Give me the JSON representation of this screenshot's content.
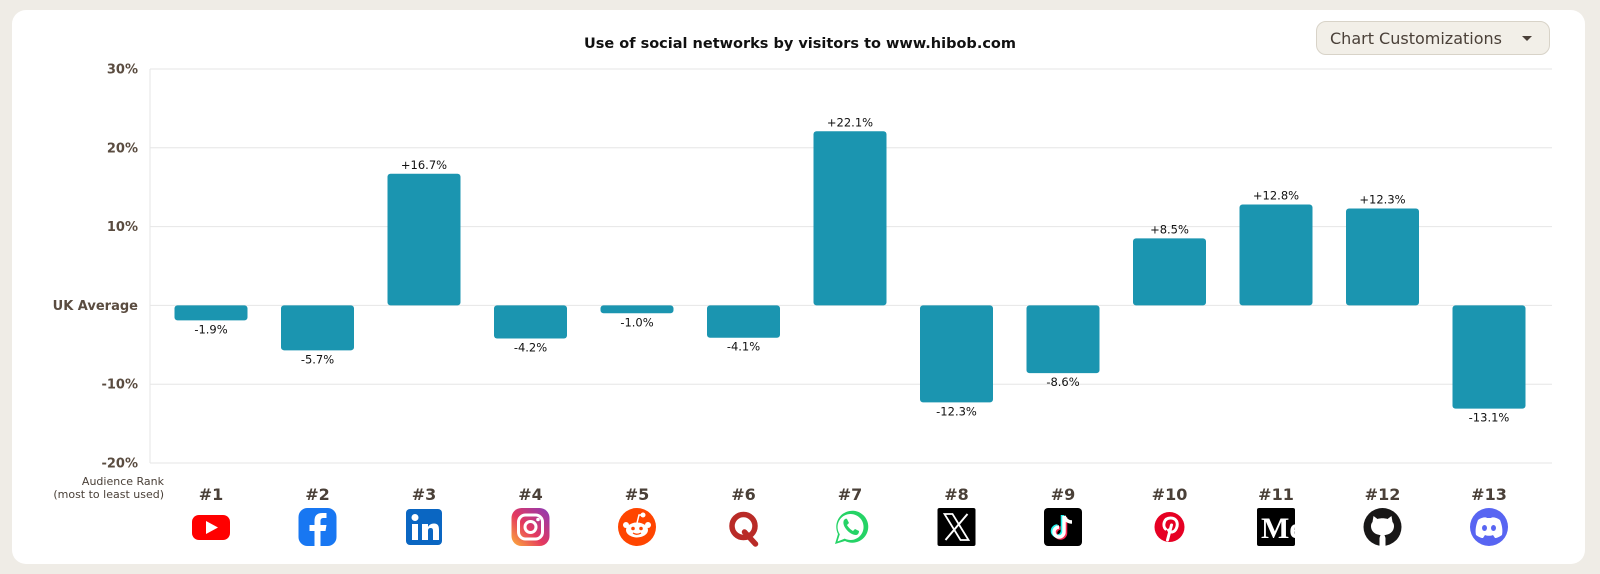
{
  "title": "Use of social networks by visitors to www.hibob.com",
  "customize_button": {
    "label": "Chart Customizations",
    "icon": "chevron-down-icon"
  },
  "rank_caption": {
    "line1": "Audience Rank",
    "line2": "(most to least used)"
  },
  "chart_data": {
    "type": "bar",
    "title": "Use of social networks by visitors to www.hibob.com",
    "xlabel": "",
    "ylabel": "",
    "baseline_label": "UK Average",
    "categories": [
      "#1",
      "#2",
      "#3",
      "#4",
      "#5",
      "#6",
      "#7",
      "#8",
      "#9",
      "#10",
      "#11",
      "#12",
      "#13"
    ],
    "values": [
      -1.9,
      -5.7,
      16.7,
      -4.2,
      -1.0,
      -4.1,
      22.1,
      -12.3,
      -8.6,
      8.5,
      12.8,
      12.3,
      -13.1
    ],
    "value_labels": [
      "-1.9%",
      "-5.7%",
      "+16.7%",
      "-4.2%",
      "-1.0%",
      "-4.1%",
      "+22.1%",
      "-12.3%",
      "-8.6%",
      "+8.5%",
      "+12.8%",
      "+12.3%",
      "-13.1%"
    ],
    "icons": [
      "youtube-icon",
      "facebook-icon",
      "linkedin-icon",
      "instagram-icon",
      "reddit-icon",
      "quora-icon",
      "whatsapp-icon",
      "x-icon",
      "tiktok-icon",
      "pinterest-icon",
      "medium-icon",
      "github-icon",
      "discord-icon"
    ],
    "yticks": [
      {
        "value": 30,
        "label": "30%"
      },
      {
        "value": 20,
        "label": "20%"
      },
      {
        "value": 10,
        "label": "10%"
      },
      {
        "value": 0,
        "label": "UK Average"
      },
      {
        "value": -10,
        "label": "-10%"
      },
      {
        "value": -20,
        "label": "-20%"
      }
    ],
    "ylim": [
      -20,
      30
    ],
    "grid": true,
    "bar_color": "#1b95b0"
  }
}
